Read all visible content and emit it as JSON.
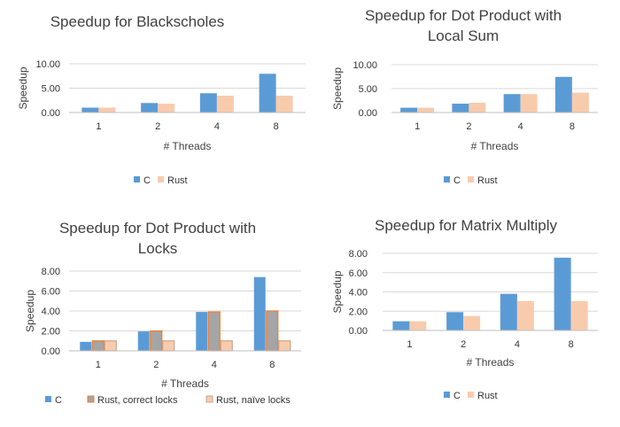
{
  "chart_data": [
    {
      "type": "bar",
      "title": "Speedup for Blackscholes",
      "xlabel": "# Threads",
      "ylabel": "Speedup",
      "categories": [
        "1",
        "2",
        "4",
        "8"
      ],
      "ylim": [
        0,
        10
      ],
      "yticks": [
        "0.00",
        "5.00",
        "10.00"
      ],
      "grid": true,
      "legend_position": "bottom",
      "series": [
        {
          "name": "C",
          "values": [
            1.0,
            1.95,
            3.95,
            7.95
          ],
          "color": "#5b9bd5"
        },
        {
          "name": "Rust",
          "values": [
            1.0,
            1.8,
            3.45,
            3.45
          ],
          "color": "#f8cbad"
        }
      ]
    },
    {
      "type": "bar",
      "title": "Speedup for Dot Product with Local Sum",
      "xlabel": "# Threads",
      "ylabel": "Speedup",
      "categories": [
        "1",
        "2",
        "4",
        "8"
      ],
      "ylim": [
        0,
        10
      ],
      "yticks": [
        "0.00",
        "5.00",
        "10.00"
      ],
      "grid": true,
      "legend_position": "bottom",
      "series": [
        {
          "name": "C",
          "values": [
            1.0,
            1.85,
            3.85,
            7.45
          ],
          "color": "#5b9bd5"
        },
        {
          "name": "Rust",
          "values": [
            1.0,
            2.05,
            3.85,
            4.15
          ],
          "color": "#f8cbad"
        }
      ]
    },
    {
      "type": "bar",
      "title": "Speedup for Dot Product with Locks",
      "xlabel": "# Threads",
      "ylabel": "Speedup",
      "categories": [
        "1",
        "2",
        "4",
        "8"
      ],
      "ylim": [
        0,
        8
      ],
      "yticks": [
        "0.00",
        "2.00",
        "4.00",
        "6.00",
        "8.00"
      ],
      "grid": true,
      "legend_position": "bottom",
      "series": [
        {
          "name": "C",
          "values": [
            0.9,
            1.95,
            3.9,
            7.4
          ],
          "color": "#5b9bd5"
        },
        {
          "name": "Rust, correct locks",
          "values": [
            1.0,
            2.0,
            3.9,
            4.0
          ],
          "color": "#a5a5a5"
        },
        {
          "name": "Rust, naïve locks",
          "values": [
            1.0,
            1.0,
            1.0,
            1.0
          ],
          "color": "#f8cbad"
        }
      ]
    },
    {
      "type": "bar",
      "title": "Speedup for Matrix Multiply",
      "xlabel": "# Threads",
      "ylabel": "Speedup",
      "categories": [
        "1",
        "2",
        "4",
        "8"
      ],
      "ylim": [
        0,
        8
      ],
      "yticks": [
        "0.00",
        "2.00",
        "4.00",
        "6.00",
        "8.00"
      ],
      "grid": true,
      "legend_position": "bottom",
      "series": [
        {
          "name": "C",
          "values": [
            0.95,
            1.9,
            3.8,
            7.55
          ],
          "color": "#5b9bd5"
        },
        {
          "name": "Rust",
          "values": [
            0.95,
            1.5,
            3.05,
            3.05
          ],
          "color": "#f8cbad"
        }
      ]
    }
  ]
}
